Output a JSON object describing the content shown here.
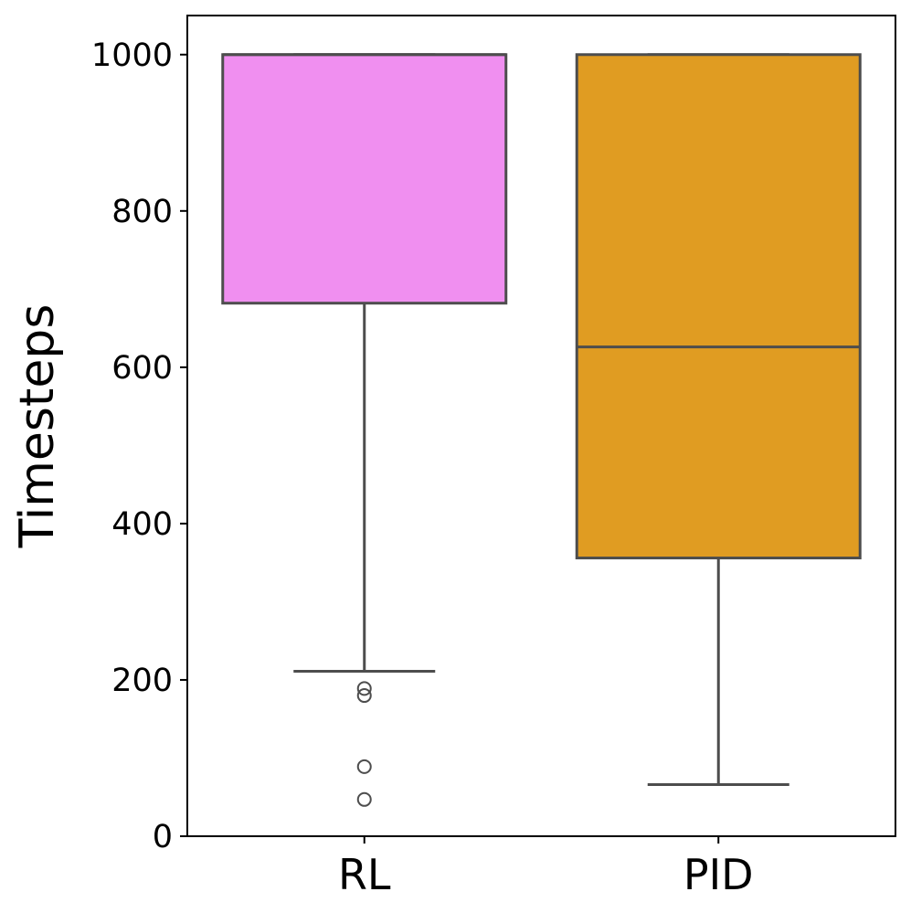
{
  "chart_data": {
    "type": "box",
    "title": "",
    "xlabel": "",
    "ylabel": "Timesteps",
    "ylim": [
      0,
      1050
    ],
    "yticks": [
      0,
      200,
      400,
      600,
      800,
      1000
    ],
    "ytick_labels": [
      "0",
      "200",
      "400",
      "600",
      "800",
      "1000"
    ],
    "grid": false,
    "legend": "none",
    "categories": [
      "RL",
      "PID"
    ],
    "boxes": [
      {
        "category": "RL",
        "color": "#f08ff0",
        "whisker_low": 211,
        "q1": 682,
        "median": 1000,
        "q3": 1000,
        "whisker_high": 1000,
        "outliers": [
          189,
          180,
          89,
          47
        ]
      },
      {
        "category": "PID",
        "color": "#e09c22",
        "whisker_low": 66,
        "q1": 356,
        "median": 626,
        "q3": 1000,
        "whisker_high": 1000,
        "outliers": []
      }
    ],
    "line_color": "#4d4d4d"
  }
}
